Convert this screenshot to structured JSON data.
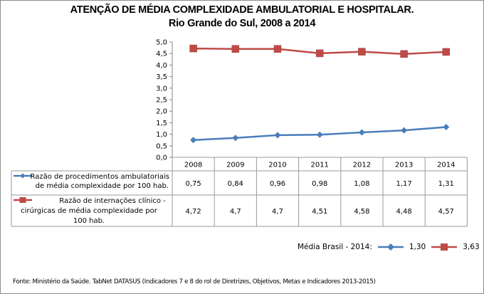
{
  "chart_data": {
    "type": "line",
    "title": "ATENÇÃO DE MÉDIA COMPLEXIDADE AMBULATORIAL E HOSPITALAR.",
    "subtitle": "Rio Grande do Sul, 2008 a 2014",
    "xlabel": "",
    "ylabel": "",
    "ylim": [
      0,
      5
    ],
    "yticks": [
      "0,0",
      "0,5",
      "1,0",
      "1,5",
      "2,0",
      "2,5",
      "3,0",
      "3,5",
      "4,0",
      "4,5",
      "5,0"
    ],
    "ytick_values": [
      0,
      0.5,
      1,
      1.5,
      2,
      2.5,
      3,
      3.5,
      4,
      4.5,
      5
    ],
    "categories": [
      "2008",
      "2009",
      "2010",
      "2011",
      "2012",
      "2013",
      "2014"
    ],
    "grid": false,
    "legend": "data-table",
    "series": [
      {
        "name": "Razão de procedimentos ambulatoriais de média complexidade por 100 hab.",
        "label_lines": [
          "Razão de procedimentos ambulatoriais",
          "de média complexidade por 100 hab."
        ],
        "marker": "diamond",
        "color": "#4a7ebb",
        "values": [
          0.75,
          0.84,
          0.96,
          0.98,
          1.08,
          1.17,
          1.31
        ],
        "value_labels": [
          "0,75",
          "0,84",
          "0,96",
          "0,98",
          "1,08",
          "1,17",
          "1,31"
        ]
      },
      {
        "name": "Razão de internações clínico - cirúrgicas de média complexidade por 100 hab.",
        "label_lines": [
          "Razão de internações clínico -",
          "cirúrgicas de média complexidade por",
          "100 hab."
        ],
        "marker": "square",
        "color": "#be4b48",
        "values": [
          4.72,
          4.7,
          4.7,
          4.51,
          4.58,
          4.48,
          4.57
        ],
        "value_labels": [
          "4,72",
          "4,7",
          "4,7",
          "4,51",
          "4,58",
          "4,48",
          "4,57"
        ]
      }
    ]
  },
  "benchmark": {
    "label": "Média Brasil - 2014:",
    "items": [
      {
        "marker": "diamond",
        "color": "#4a7ebb",
        "value": "1,30"
      },
      {
        "marker": "square",
        "color": "#be4b48",
        "value": "3,63"
      }
    ]
  },
  "source": "Fonte: Ministério da Saúde. TabNet DATASUS (Indicadores 7 e 8 do rol de Diretrizes, Objetivos, Metas e Indicadores 2013-2015)"
}
